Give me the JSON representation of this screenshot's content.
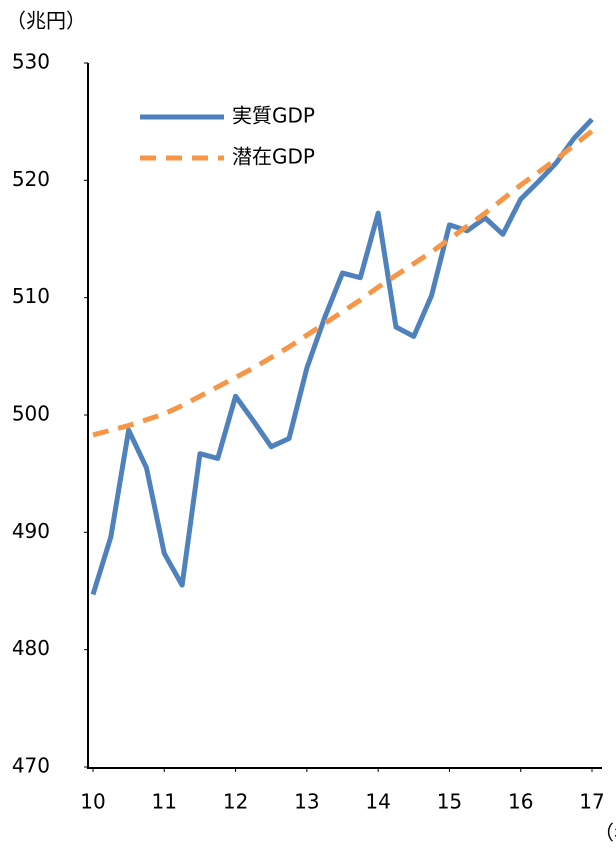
{
  "chart_data": {
    "type": "line",
    "y_label": "（兆円）",
    "x_label": "（年）",
    "x": [
      10,
      10.25,
      10.5,
      10.75,
      11,
      11.25,
      11.5,
      11.75,
      12,
      12.25,
      12.5,
      12.75,
      13,
      13.25,
      13.5,
      13.75,
      14,
      14.25,
      14.5,
      14.75,
      15,
      15.25,
      15.5,
      15.75,
      16,
      16.25,
      16.5,
      16.75,
      17
    ],
    "series": [
      {
        "name": "実質GDP",
        "color": "#4f81bd",
        "dash": false,
        "values": [
          484.7,
          489.6,
          498.7,
          495.5,
          488.2,
          485.5,
          496.7,
          496.3,
          501.6,
          499.5,
          497.3,
          498.0,
          504.0,
          508.3,
          512.1,
          511.7,
          517.2,
          507.5,
          506.7,
          510.2,
          516.2,
          515.7,
          516.8,
          515.4,
          518.4,
          519.9,
          521.5,
          523.6,
          525.2
        ]
      },
      {
        "name": "潜在GDP",
        "color": "#f79646",
        "dash": true,
        "values": [
          498.3,
          498.7,
          499.1,
          499.6,
          500.1,
          500.8,
          501.6,
          502.4,
          503.2,
          504.0,
          504.9,
          505.8,
          506.8,
          507.8,
          508.8,
          509.8,
          510.9,
          511.9,
          512.9,
          513.9,
          515.0,
          516.1,
          517.2,
          518.4,
          519.6,
          520.7,
          521.8,
          523.0,
          524.2
        ]
      }
    ],
    "xlim": [
      10,
      17
    ],
    "xticks": [
      10,
      11,
      12,
      13,
      14,
      15,
      16,
      17
    ],
    "ylim": [
      470,
      530
    ],
    "yticks": [
      470,
      480,
      490,
      500,
      510,
      520,
      530
    ],
    "legend": "upper-left",
    "grid": false
  }
}
